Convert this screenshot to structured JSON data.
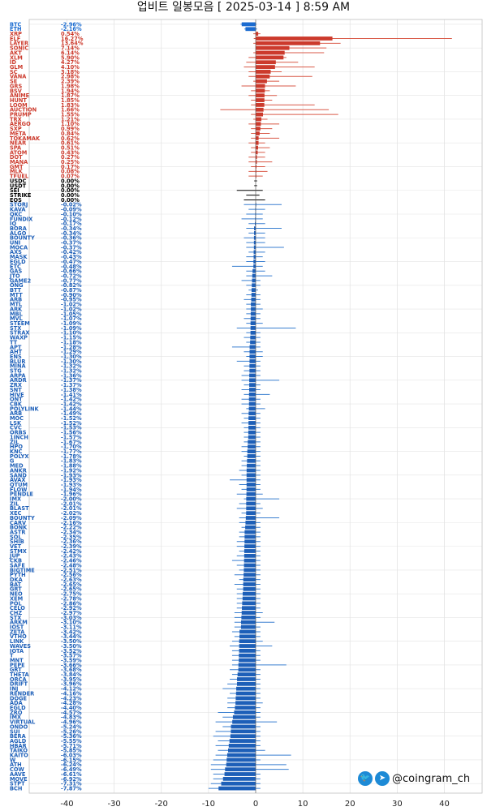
{
  "chart_data": {
    "type": "bar",
    "orientation": "horizontal",
    "title": "업비트 일봉모음 [ 2025-03-14 ]  8:59 AM",
    "xlim": [
      -48,
      48
    ],
    "x_ticks": [
      -40,
      -30,
      -20,
      -10,
      0,
      10,
      20,
      30,
      40
    ],
    "grid": true,
    "colors": {
      "up": "#cc3a2c",
      "flat": "#000000",
      "down": "#1d5fb8",
      "highlight": "#1a6bd0",
      "grid": "#e4e4e4",
      "range": "#3a7fd0",
      "range_up": "#d95a48"
    },
    "highlight_symbols": [
      "BTC",
      "ETH"
    ],
    "columns": [
      "symbol",
      "change_pct",
      "low_pct",
      "high_pct"
    ],
    "rows": [
      [
        "BTC",
        "-2.96%",
        -3.2,
        0.2
      ],
      [
        "ETH",
        "-2.16%",
        -2.4,
        0.3
      ],
      [
        "XRP",
        "0.54%",
        -0.5,
        1.0
      ],
      [
        "ELF",
        "16.27%",
        -0.4,
        41.6
      ],
      [
        "LAYER",
        "13.64%",
        -0.5,
        18.0
      ],
      [
        "SONIC",
        "7.14%",
        0.0,
        15.0
      ],
      [
        "AKT",
        "6.14%",
        -0.5,
        14.5
      ],
      [
        "XLM",
        "5.90%",
        -1.5,
        6.5
      ],
      [
        "ID",
        "4.27%",
        -2.0,
        9.0
      ],
      [
        "GLM",
        "4.10%",
        -2.5,
        12.5
      ],
      [
        "SC",
        "3.18%",
        -1.5,
        5.5
      ],
      [
        "VANA",
        "2.98%",
        -1.5,
        12.0
      ],
      [
        "SE",
        "2.39%",
        -0.5,
        5.0
      ],
      [
        "GRS",
        "1.98%",
        -3.0,
        8.5
      ],
      [
        "BSV",
        "1.94%",
        -1.0,
        3.0
      ],
      [
        "ANIME",
        "1.87%",
        -1.5,
        4.5
      ],
      [
        "HUNT",
        "1.85%",
        -1.0,
        3.5
      ],
      [
        "LOOM",
        "1.83%",
        -1.0,
        12.5
      ],
      [
        "AUCTION",
        "1.66%",
        -7.5,
        15.5
      ],
      [
        "PRUMP",
        "1.55%",
        -1.0,
        17.5
      ],
      [
        "TRX",
        "1.21%",
        -0.5,
        2.5
      ],
      [
        "AERGO",
        "1.10%",
        -1.5,
        5.0
      ],
      [
        "SXP",
        "0.99%",
        -1.0,
        3.5
      ],
      [
        "META",
        "0.84%",
        -1.0,
        3.0
      ],
      [
        "TOKAMAK",
        "0.62%",
        -1.0,
        5.0
      ],
      [
        "NEAR",
        "0.61%",
        -1.5,
        2.0
      ],
      [
        "SPA",
        "0.51%",
        -1.0,
        3.0
      ],
      [
        "ATOM",
        "0.43%",
        -1.0,
        2.0
      ],
      [
        "DOT",
        "0.27%",
        -1.5,
        2.0
      ],
      [
        "MANA",
        "0.25%",
        -1.5,
        3.5
      ],
      [
        "GMT",
        "0.17%",
        -1.0,
        2.0
      ],
      [
        "MLK",
        "0.08%",
        -1.5,
        2.5
      ],
      [
        "TFUEL",
        "0.07%",
        -1.5,
        1.5
      ],
      [
        "USDC",
        "0.00%",
        -0.3,
        0.3
      ],
      [
        "USDT",
        "0.00%",
        -0.3,
        0.3
      ],
      [
        "SEI",
        "0.00%",
        -4.0,
        1.5
      ],
      [
        "STRIKE",
        "0.00%",
        -2.0,
        0.8
      ],
      [
        "EOS",
        "0.00%",
        -2.5,
        2.0
      ],
      [
        "STORJ",
        "-0.02%",
        -2.5,
        5.5
      ],
      [
        "KAVA",
        "-0.09%",
        -1.5,
        2.0
      ],
      [
        "QKC",
        "-0.10%",
        -2.0,
        1.5
      ],
      [
        "FUNDIX",
        "-0.12%",
        -3.0,
        1.5
      ],
      [
        "IQ",
        "-0.17%",
        -1.5,
        2.0
      ],
      [
        "BORA",
        "-0.34%",
        -2.0,
        5.5
      ],
      [
        "ALGO",
        "-0.34%",
        -1.5,
        2.0
      ],
      [
        "BOUNTY",
        "-0.36%",
        -2.5,
        2.0
      ],
      [
        "UNI",
        "-0.37%",
        -2.0,
        2.0
      ],
      [
        "MOCA",
        "-0.37%",
        -2.0,
        6.0
      ],
      [
        "AXS",
        "-0.42%",
        -1.5,
        2.0
      ],
      [
        "MASK",
        "-0.43%",
        -2.0,
        1.5
      ],
      [
        "EGLD",
        "-0.47%",
        -2.0,
        2.0
      ],
      [
        "ETC",
        "-0.48%",
        -5.0,
        1.5
      ],
      [
        "GAS",
        "-0.66%",
        -2.0,
        2.0
      ],
      [
        "JTO",
        "-0.72%",
        -2.0,
        3.5
      ],
      [
        "GAME2",
        "-0.77%",
        -3.0,
        1.0
      ],
      [
        "ONG",
        "-0.82%",
        -2.0,
        1.0
      ],
      [
        "BTT",
        "-0.87%",
        -1.5,
        0.5
      ],
      [
        "MTT",
        "-0.90%",
        -2.0,
        1.0
      ],
      [
        "ARB",
        "-0.95%",
        -2.5,
        1.0
      ],
      [
        "MTL",
        "-1.02%",
        -2.0,
        1.0
      ],
      [
        "ARK",
        "-1.02%",
        -2.0,
        1.5
      ],
      [
        "MBL",
        "-1.05%",
        -2.0,
        1.0
      ],
      [
        "MVL",
        "-1.07%",
        -2.5,
        1.0
      ],
      [
        "STEEM",
        "-1.09%",
        -2.0,
        1.5
      ],
      [
        "STX",
        "-1.09%",
        -4.0,
        8.5
      ],
      [
        "STRAX",
        "-1.10%",
        -2.0,
        1.0
      ],
      [
        "WAXP",
        "-1.15%",
        -2.5,
        1.0
      ],
      [
        "TT",
        "-1.18%",
        -2.0,
        1.0
      ],
      [
        "APT",
        "-1.28%",
        -5.0,
        1.0
      ],
      [
        "AHT",
        "-1.29%",
        -2.5,
        1.5
      ],
      [
        "ENS",
        "-1.30%",
        -2.0,
        1.5
      ],
      [
        "BLUR",
        "-1.30%",
        -4.0,
        1.0
      ],
      [
        "MINA",
        "-1.32%",
        -2.5,
        1.0
      ],
      [
        "STG",
        "-1.32%",
        -2.5,
        1.0
      ],
      [
        "ARPA",
        "-1.36%",
        -3.0,
        1.0
      ],
      [
        "ARDR",
        "-1.37%",
        -3.0,
        5.0
      ],
      [
        "ZRX",
        "-1.37%",
        -2.5,
        1.0
      ],
      [
        "SNT",
        "-1.38%",
        -3.0,
        1.0
      ],
      [
        "HIVE",
        "-1.41%",
        -2.5,
        3.0
      ],
      [
        "ONT",
        "-1.42%",
        -3.0,
        1.0
      ],
      [
        "CBK",
        "-1.42%",
        -3.0,
        1.0
      ],
      [
        "POLYLINK",
        "-1.44%",
        -2.0,
        2.0
      ],
      [
        "ARB",
        "-1.49%",
        -3.0,
        1.0
      ],
      [
        "MOC",
        "-1.52%",
        -2.5,
        1.0
      ],
      [
        "LSK",
        "-1.52%",
        -3.0,
        1.0
      ],
      [
        "CVC",
        "-1.53%",
        -2.5,
        1.0
      ],
      [
        "ORBS",
        "-1.56%",
        -2.5,
        1.0
      ],
      [
        "1INCH",
        "-1.57%",
        -2.5,
        1.0
      ],
      [
        "ZIL",
        "-1.67%",
        -2.5,
        1.0
      ],
      [
        "HPO",
        "-1.70%",
        -3.0,
        1.0
      ],
      [
        "KNC",
        "-1.77%",
        -3.0,
        1.0
      ],
      [
        "POLYX",
        "-1.78%",
        -2.5,
        1.0
      ],
      [
        "G",
        "-1.83%",
        -3.0,
        1.0
      ],
      [
        "MED",
        "-1.88%",
        -3.0,
        1.0
      ],
      [
        "ANKR",
        "-1.92%",
        -3.5,
        1.0
      ],
      [
        "SAND",
        "-1.93%",
        -3.0,
        1.0
      ],
      [
        "AVAX",
        "-1.93%",
        -5.5,
        1.0
      ],
      [
        "QTUM",
        "-1.93%",
        -3.5,
        1.0
      ],
      [
        "FLOW",
        "-1.94%",
        -3.0,
        1.0
      ],
      [
        "PENDLE",
        "-1.96%",
        -4.0,
        1.5
      ],
      [
        "IMX",
        "-2.00%",
        -2.5,
        5.0
      ],
      [
        "ZIL",
        "-2.01%",
        -3.5,
        1.0
      ],
      [
        "BLAST",
        "-2.01%",
        -4.0,
        1.5
      ],
      [
        "XEC",
        "-2.02%",
        -3.0,
        1.0
      ],
      [
        "BOUNTY",
        "-2.09%",
        -3.5,
        5.0
      ],
      [
        "CARV",
        "-2.16%",
        -3.5,
        1.0
      ],
      [
        "BONK",
        "-2.22%",
        -3.0,
        1.0
      ],
      [
        "ASTR",
        "-2.34%",
        -3.5,
        1.0
      ],
      [
        "SOL",
        "-2.35%",
        -3.5,
        1.0
      ],
      [
        "SHIB",
        "-2.36%",
        -4.0,
        1.0
      ],
      [
        "VET",
        "-2.39%",
        -4.0,
        1.0
      ],
      [
        "STMX",
        "-2.42%",
        -3.5,
        1.0
      ],
      [
        "JUP",
        "-2.43%",
        -4.0,
        1.0
      ],
      [
        "CKB",
        "-2.46%",
        -5.0,
        1.0
      ],
      [
        "SAFE",
        "-2.48%",
        -4.0,
        1.0
      ],
      [
        "BIGTIME",
        "-2.51%",
        -3.5,
        1.0
      ],
      [
        "PYTH",
        "-2.56%",
        -4.5,
        1.0
      ],
      [
        "DKA",
        "-2.63%",
        -3.5,
        1.0
      ],
      [
        "BAT",
        "-2.65%",
        -4.5,
        1.0
      ],
      [
        "GRT",
        "-2.65%",
        -4.0,
        1.0
      ],
      [
        "NEO",
        "-2.75%",
        -4.0,
        1.0
      ],
      [
        "XEM",
        "-2.78%",
        -4.0,
        1.0
      ],
      [
        "POL",
        "-2.86%",
        -4.0,
        1.0
      ],
      [
        "CELO",
        "-2.92%",
        -4.0,
        1.0
      ],
      [
        "CHZ",
        "-2.97%",
        -4.5,
        1.5
      ],
      [
        "STX",
        "-3.03%",
        -4.5,
        1.0
      ],
      [
        "ARKM",
        "-3.10%",
        -4.5,
        4.0
      ],
      [
        "IOST",
        "-3.11%",
        -4.5,
        1.0
      ],
      [
        "ZETA",
        "-3.42%",
        -5.0,
        1.0
      ],
      [
        "VTHO",
        "-3.44%",
        -4.5,
        1.0
      ],
      [
        "LINK",
        "-3.50%",
        -5.0,
        1.5
      ],
      [
        "WAVES",
        "-3.50%",
        -5.5,
        3.5
      ],
      [
        "IOTA",
        "-3.52%",
        -5.0,
        1.0
      ],
      [
        "T",
        "-3.57%",
        -5.0,
        1.0
      ],
      [
        "MNT",
        "-3.59%",
        -5.0,
        1.0
      ],
      [
        "PEPE",
        "-3.66%",
        -5.0,
        6.5
      ],
      [
        "GRT",
        "-3.68%",
        -5.5,
        1.0
      ],
      [
        "THETA",
        "-3.84%",
        -5.0,
        1.0
      ],
      [
        "ORCA",
        "-3.95%",
        -5.5,
        1.0
      ],
      [
        "DRIFT",
        "-3.96%",
        -6.0,
        1.0
      ],
      [
        "INJ",
        "-4.12%",
        -7.0,
        1.0
      ],
      [
        "RENDER",
        "-4.16%",
        -5.5,
        1.0
      ],
      [
        "DOGE",
        "-4.23%",
        -6.0,
        1.0
      ],
      [
        "ADA",
        "-4.28%",
        -6.0,
        1.5
      ],
      [
        "EGLD",
        "-4.40%",
        -6.0,
        1.0
      ],
      [
        "ZRO",
        "-4.57%",
        -8.0,
        1.0
      ],
      [
        "IMX",
        "-4.83%",
        -7.0,
        1.0
      ],
      [
        "VIRTUAL",
        "-4.96%",
        -8.5,
        4.5
      ],
      [
        "ONDO",
        "-5.24%",
        -7.0,
        1.0
      ],
      [
        "SUI",
        "-5.26%",
        -8.5,
        1.0
      ],
      [
        "BERA",
        "-5.36%",
        -9.0,
        1.0
      ],
      [
        "AGLD",
        "-5.55%",
        -8.0,
        1.0
      ],
      [
        "HBAR",
        "-5.71%",
        -8.5,
        1.0
      ],
      [
        "TAIKO",
        "-5.85%",
        -8.0,
        2.0
      ],
      [
        "KAITO",
        "-6.03%",
        -8.5,
        7.5
      ],
      [
        "W",
        "-6.15%",
        -9.0,
        1.0
      ],
      [
        "ATH",
        "-6.24%",
        -9.5,
        6.5
      ],
      [
        "COW",
        "-6.49%",
        -9.5,
        7.0
      ],
      [
        "AAVE",
        "-6.61%",
        -9.0,
        1.0
      ],
      [
        "MOVE",
        "-6.92%",
        -9.0,
        1.0
      ],
      [
        "STPT",
        "-7.31%",
        -9.5,
        1.0
      ],
      [
        "BCH",
        "-7.87%",
        -10.0,
        1.0
      ]
    ]
  },
  "watermark": {
    "twitter_icon": "twitter-bird-icon",
    "telegram_icon": "telegram-plane-icon",
    "text": "@coingram_ch"
  }
}
